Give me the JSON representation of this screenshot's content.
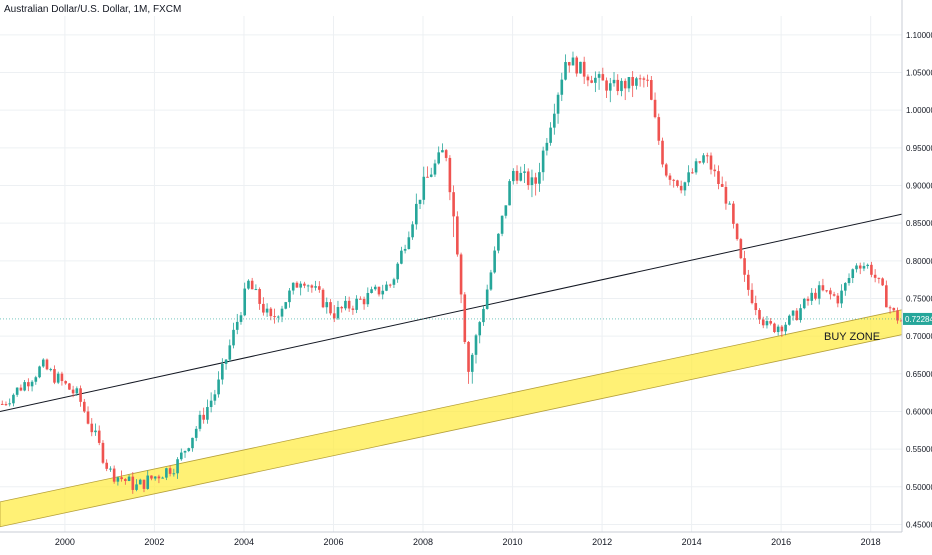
{
  "chart_data": {
    "type": "candlestick",
    "title": "Australian Dollar/U.S. Dollar, 1M, FXCM",
    "x_ticks": [
      "2000",
      "2002",
      "2004",
      "2006",
      "2008",
      "2010",
      "2012",
      "2014",
      "2016",
      "2018"
    ],
    "y_ticks": [
      "1.10000",
      "1.05000",
      "1.00000",
      "0.95000",
      "0.90000",
      "0.85000",
      "0.80000",
      "0.75000",
      "0.70000",
      "0.65000",
      "0.60000",
      "0.55000",
      "0.50000",
      "0.45000"
    ],
    "xlim": [
      1998.55,
      2018.7
    ],
    "ylim": [
      0.44,
      1.125
    ],
    "last_price": "0.72284",
    "grid": true,
    "colors": {
      "up": "#26a69a",
      "down": "#ef5350",
      "zone": "#ffeb3b",
      "trend": "#131722",
      "price": "#26a69a"
    },
    "annotations": [
      {
        "text": "BUY ZONE"
      }
    ],
    "trend_line": {
      "x": [
        1998.55,
        2018.7
      ],
      "y": [
        0.6,
        0.862
      ]
    },
    "buy_zone": {
      "x": [
        1998.55,
        2018.7
      ],
      "upper": [
        0.48,
        0.735
      ],
      "lower": [
        0.447,
        0.702
      ]
    },
    "key_points": {
      "x": [
        1998.6,
        1999.5,
        2000.3,
        2001.0,
        2001.6,
        2002.5,
        2003.4,
        2004.1,
        2004.6,
        2005.3,
        2006.0,
        2006.7,
        2007.3,
        2008.0,
        2008.5,
        2008.8,
        2009.0,
        2009.5,
        2010.0,
        2010.5,
        2011.2,
        2011.6,
        2012.2,
        2013.0,
        2013.4,
        2013.8,
        2014.3,
        2014.8,
        2015.2,
        2015.7,
        2016.2,
        2016.8,
        2017.3,
        2017.7,
        2018.0,
        2018.5,
        2018.7
      ],
      "y": [
        0.61,
        0.66,
        0.62,
        0.52,
        0.5,
        0.53,
        0.63,
        0.77,
        0.72,
        0.78,
        0.73,
        0.75,
        0.77,
        0.9,
        0.95,
        0.8,
        0.65,
        0.78,
        0.92,
        0.9,
        1.07,
        1.05,
        1.03,
        1.04,
        0.92,
        0.9,
        0.94,
        0.88,
        0.77,
        0.71,
        0.72,
        0.76,
        0.75,
        0.8,
        0.79,
        0.73,
        0.72
      ],
      "high": [
        0.63,
        0.67,
        0.64,
        0.55,
        0.52,
        0.55,
        0.66,
        0.8,
        0.75,
        0.79,
        0.76,
        0.77,
        0.79,
        0.94,
        0.98,
        0.85,
        0.66,
        0.8,
        0.94,
        0.94,
        1.1,
        1.08,
        1.06,
        1.06,
        0.95,
        0.93,
        0.95,
        0.91,
        0.8,
        0.74,
        0.74,
        0.78,
        0.78,
        0.81,
        0.81,
        0.75,
        0.73
      ],
      "low": [
        0.6,
        0.64,
        0.6,
        0.51,
        0.48,
        0.51,
        0.61,
        0.75,
        0.68,
        0.75,
        0.71,
        0.73,
        0.75,
        0.88,
        0.92,
        0.7,
        0.6,
        0.76,
        0.9,
        0.85,
        1.04,
        1.01,
        0.98,
        1.01,
        0.88,
        0.87,
        0.91,
        0.86,
        0.74,
        0.69,
        0.7,
        0.74,
        0.73,
        0.78,
        0.77,
        0.71,
        0.7
      ]
    }
  }
}
